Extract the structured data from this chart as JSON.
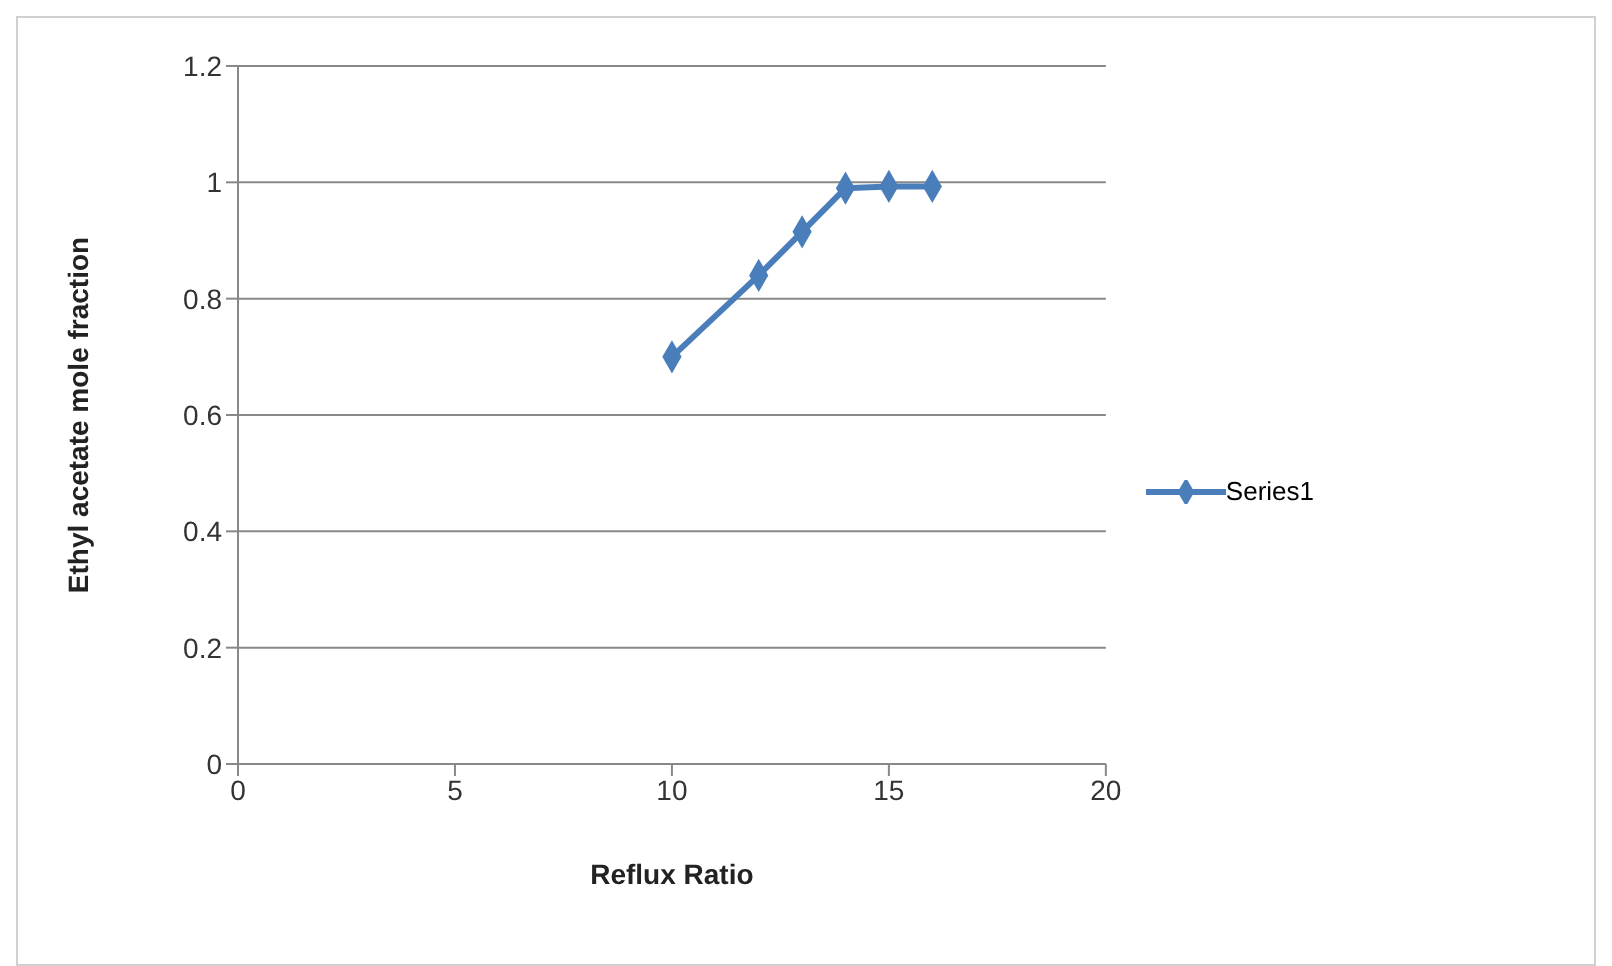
{
  "chart_data": {
    "type": "line",
    "xlabel": "Reflux Ratio",
    "ylabel": "Ethyl acetate mole fraction",
    "x": [
      10,
      12,
      13,
      14,
      15,
      16
    ],
    "series": [
      {
        "name": "Series1",
        "color": "#4a7ebb",
        "values": [
          0.7,
          0.84,
          0.915,
          0.99,
          0.993,
          0.993
        ]
      }
    ],
    "xlim": [
      0,
      20
    ],
    "xticks": [
      0,
      5,
      10,
      15,
      20
    ],
    "ylim": [
      0,
      1.2
    ],
    "yticks": [
      0,
      0.2,
      0.4,
      0.6,
      0.8,
      1,
      1.2
    ],
    "grid": "y",
    "legend": "right",
    "marker": "diamond",
    "line_style": "solid"
  }
}
